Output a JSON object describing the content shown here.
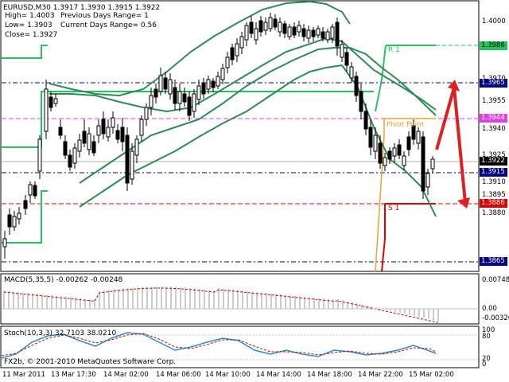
{
  "header": {
    "symbol_line": "EURUSD,M30  1.3917 1.3930 1.3915 1.3922",
    "high_line": "High= 1.4003",
    "low_line": "Low= 1.3903",
    "close_line": "Close= 1.3927",
    "prev_range": "Previous Days Range= 1",
    "curr_range": "Current Days Range= 0.56"
  },
  "price_axis": {
    "labels": [
      "1.4000",
      "1.3970",
      "1.3955",
      "1.3940",
      "1.3925",
      "1.3910",
      "1.3895",
      "1.3880"
    ]
  },
  "price_tags": [
    {
      "text": "1.3986",
      "color": "#22c55e",
      "text_color": "#000000"
    },
    {
      "text": "1.3965",
      "color": "#000080",
      "text_color": "#ffffff"
    },
    {
      "text": "1.3944",
      "color": "#e040e0",
      "text_color": "#ffffff"
    },
    {
      "text": "1.3922",
      "color": "#000000",
      "text_color": "#ffffff"
    },
    {
      "text": "1.3915",
      "color": "#000080",
      "text_color": "#ffffff"
    },
    {
      "text": "1.3886",
      "color": "#e00000",
      "text_color": "#ffffff"
    },
    {
      "text": "1.3865",
      "color": "#000080",
      "text_color": "#ffffff"
    }
  ],
  "level_labels": {
    "r1": "R 1",
    "pivot": "Pivot Point",
    "s1": "S 1"
  },
  "macd": {
    "title": "MACD(5,35,5) -0.00262 -0.00248",
    "axis": [
      "0.00748",
      "0.00",
      "-0.00326"
    ]
  },
  "stoch": {
    "title": "Stoch(10,3,3) 32.7103 38.0210",
    "axis": [
      "100",
      "80",
      "20",
      "0"
    ]
  },
  "copyright": "FX2b, © 2001-2010 MetaQuotes Software Corp.",
  "time_axis": [
    "11 Mar 2011",
    "13 Mar 17:30",
    "14 Mar 02:00",
    "14 Mar 06:00",
    "14 Mar 10:00",
    "14 Mar 14:00",
    "14 Mar 18:00",
    "14 Mar 22:00",
    "15 Mar 02:00"
  ],
  "colors": {
    "band": "#2e8b57",
    "ma": "#22c55e",
    "bull": "#ffffff",
    "bear": "#000000",
    "arrow": "#e02020",
    "pivot": "#f0a030",
    "signal": "#cc0000",
    "stoch_main": "#2a8fd0"
  }
}
